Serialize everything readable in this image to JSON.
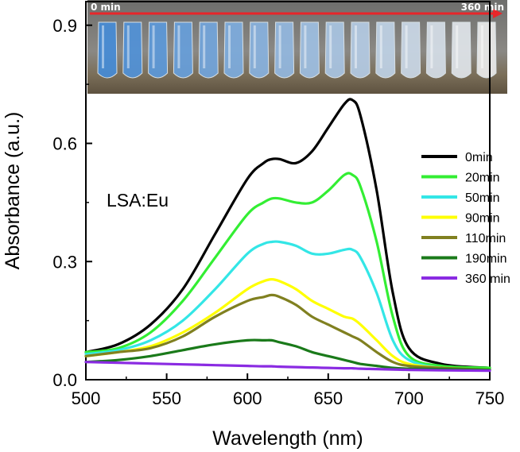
{
  "chart_data": {
    "type": "line",
    "title": "",
    "xlabel": "Wavelength (nm)",
    "ylabel": "Absorbance (a.u.)",
    "xlim": [
      500,
      750
    ],
    "ylim": [
      0.0,
      0.96
    ],
    "xticks": [
      500,
      550,
      600,
      650,
      700,
      750
    ],
    "xtick_labels": [
      "500",
      "550",
      "600",
      "650",
      "700",
      "750"
    ],
    "yticks": [
      0.0,
      0.3,
      0.6,
      0.9
    ],
    "ytick_labels": [
      "0.0",
      "0.3",
      "0.6",
      "0.9"
    ],
    "annotation": "LSA:Eu",
    "legend_position": "right",
    "inset": {
      "start_label": "0 min",
      "end_label": "360 min"
    },
    "x": [
      500,
      520,
      540,
      560,
      580,
      600,
      610,
      615,
      620,
      630,
      640,
      650,
      660,
      665,
      670,
      680,
      690,
      700,
      720,
      750
    ],
    "series": [
      {
        "name": "0min",
        "color": "#000000",
        "values": [
          0.07,
          0.09,
          0.14,
          0.23,
          0.37,
          0.51,
          0.55,
          0.56,
          0.56,
          0.55,
          0.58,
          0.64,
          0.7,
          0.71,
          0.67,
          0.48,
          0.22,
          0.08,
          0.04,
          0.03
        ]
      },
      {
        "name": "20min",
        "color": "#33ee33",
        "values": [
          0.07,
          0.08,
          0.12,
          0.2,
          0.31,
          0.42,
          0.45,
          0.46,
          0.46,
          0.45,
          0.45,
          0.48,
          0.52,
          0.52,
          0.49,
          0.35,
          0.16,
          0.06,
          0.035,
          0.03
        ]
      },
      {
        "name": "50min",
        "color": "#33e6e6",
        "values": [
          0.065,
          0.075,
          0.1,
          0.15,
          0.23,
          0.32,
          0.345,
          0.35,
          0.35,
          0.34,
          0.32,
          0.32,
          0.33,
          0.33,
          0.31,
          0.22,
          0.1,
          0.05,
          0.03,
          0.025
        ]
      },
      {
        "name": "90min",
        "color": "#ffff00",
        "values": [
          0.06,
          0.07,
          0.085,
          0.12,
          0.17,
          0.23,
          0.25,
          0.255,
          0.25,
          0.23,
          0.2,
          0.18,
          0.16,
          0.155,
          0.14,
          0.1,
          0.06,
          0.04,
          0.03,
          0.025
        ]
      },
      {
        "name": "110min",
        "color": "#808020",
        "values": [
          0.06,
          0.07,
          0.08,
          0.11,
          0.16,
          0.2,
          0.21,
          0.215,
          0.21,
          0.19,
          0.16,
          0.14,
          0.12,
          0.11,
          0.1,
          0.07,
          0.045,
          0.035,
          0.03,
          0.025
        ]
      },
      {
        "name": "190min",
        "color": "#1a7a1a",
        "values": [
          0.045,
          0.05,
          0.06,
          0.075,
          0.09,
          0.1,
          0.1,
          0.1,
          0.095,
          0.085,
          0.07,
          0.06,
          0.05,
          0.045,
          0.04,
          0.035,
          0.03,
          0.028,
          0.027,
          0.025
        ]
      },
      {
        "name": "360 min",
        "color": "#8a2be2",
        "values": [
          0.045,
          0.043,
          0.041,
          0.039,
          0.037,
          0.035,
          0.034,
          0.034,
          0.033,
          0.032,
          0.031,
          0.03,
          0.029,
          0.029,
          0.028,
          0.027,
          0.026,
          0.025,
          0.024,
          0.023
        ]
      }
    ]
  }
}
